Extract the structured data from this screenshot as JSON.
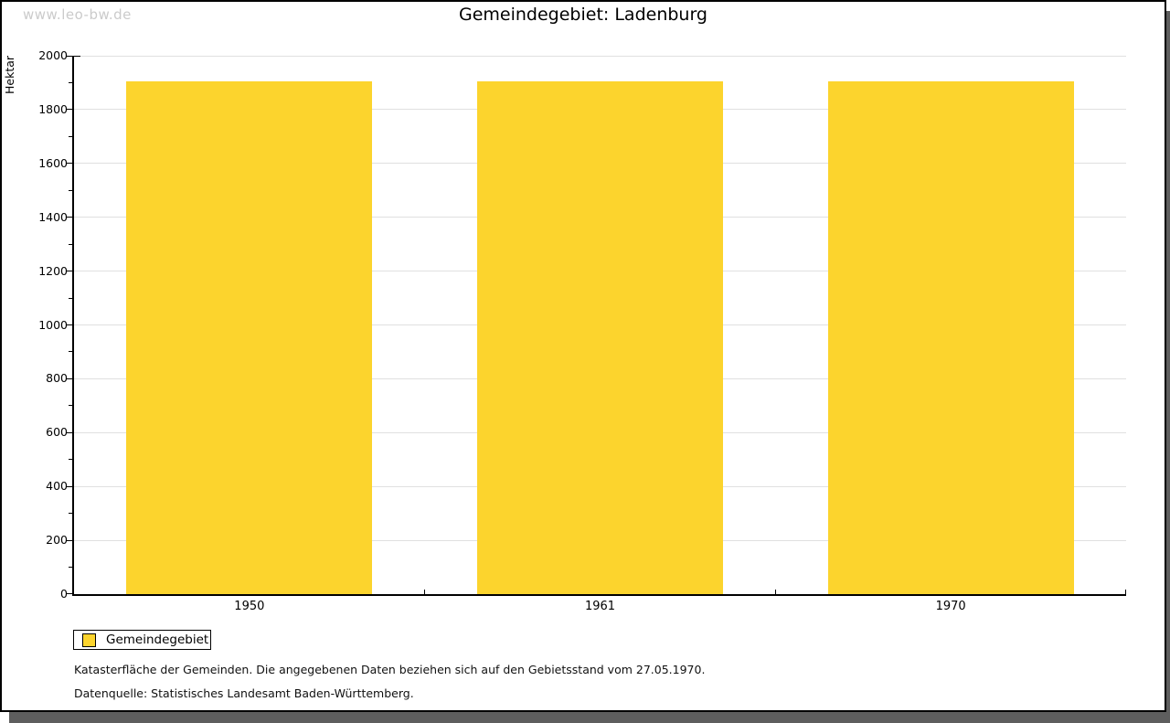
{
  "watermark": "www.leo-bw.de",
  "chart_data": {
    "type": "bar",
    "title": "Gemeindegebiet: Ladenburg",
    "ylabel": "Hektar",
    "xlabel": "",
    "categories": [
      "1950",
      "1961",
      "1970"
    ],
    "series": [
      {
        "name": "Gemeindegebiet",
        "color": "#fcd42d",
        "values": [
          1905,
          1905,
          1905
        ]
      }
    ],
    "ylim": [
      0,
      2000
    ],
    "y_axis": {
      "major_step": 200,
      "minor_step": 100
    },
    "grid": "horizontal-major",
    "legend_position": "bottom-left"
  },
  "legend": {
    "items": [
      {
        "label": "Gemeindegebiet",
        "color": "#fcd42d"
      }
    ]
  },
  "footnotes": [
    "Katasterfläche der Gemeinden. Die angegebenen Daten beziehen sich auf den Gebietsstand vom 27.05.1970.",
    "Datenquelle: Statistisches Landesamt Baden-Württemberg."
  ],
  "colors": {
    "bar": "#fcd42d",
    "gridline": "#e0e0e0",
    "axis": "#000000",
    "watermark": "#cbcbcb",
    "frame_shadow": "#5e5e5e",
    "background": "#ffffff"
  }
}
